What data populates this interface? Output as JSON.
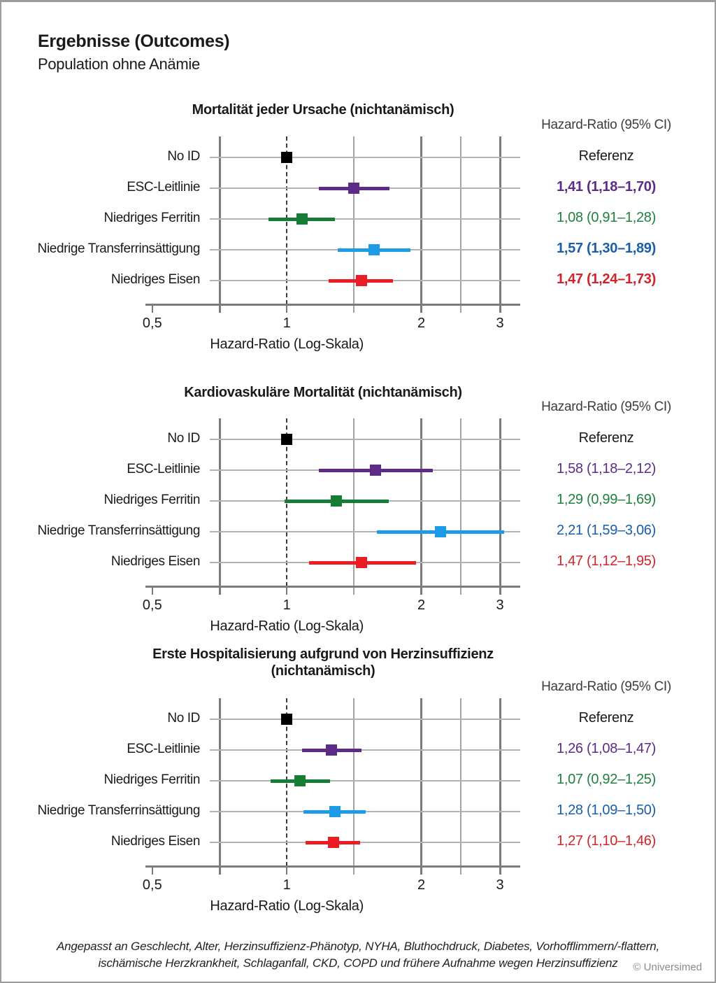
{
  "page": {
    "title": "Ergebnisse (Outcomes)",
    "subtitle": "Population ohne Anämie",
    "footer": {
      "line1": "Angepasst an Geschlecht, Alter, Herzinsuffizienz-Phänotyp, NYHA, Bluthochdruck, Diabetes, Vorhofflimmern/-flattern,",
      "line2": "ischämische Herzkrankheit, Schlaganfall, CKD, COPD und frühere Aufnahme wegen Herzinsuffizienz"
    },
    "credit": "© Universimed"
  },
  "column_header": "Hazard-Ratio (95% CI)",
  "colors": {
    "reference": {
      "marker": "#000000",
      "text": "#1a1a1a"
    },
    "purple": {
      "marker": "#5D2B87",
      "text": "#5D2B87"
    },
    "green": {
      "marker": "#167D35",
      "text": "#1F8040"
    },
    "blue": {
      "marker": "#1E9BE6",
      "text": "#1A5DA8"
    },
    "red": {
      "marker": "#EC1C24",
      "text": "#D2232A"
    }
  },
  "chart_data": [
    {
      "type": "scatter",
      "subtype": "forest-plot",
      "title_lines": [
        "Mortalität jeder Ursache (nichtanämisch)"
      ],
      "xlabel": "Hazard-Ratio (Log-Skala)",
      "xscale": "log",
      "xlim": [
        0.5,
        3.33
      ],
      "xticks": [
        {
          "value": 0.5,
          "label": "0,5"
        },
        {
          "value": 1,
          "label": "1"
        },
        {
          "value": 2,
          "label": "2"
        },
        {
          "value": 3,
          "label": "3"
        }
      ],
      "reference_line": 1,
      "rows": [
        {
          "label": "No ID",
          "hr": 1.0,
          "ci": null,
          "text": "Referenz",
          "color": "reference",
          "bold": false
        },
        {
          "label": "ESC-Leitlinie",
          "hr": 1.41,
          "ci": [
            1.18,
            1.7
          ],
          "text": "1,41 (1,18–1,70)",
          "color": "purple",
          "bold": true
        },
        {
          "label": "Niedriges Ferritin",
          "hr": 1.08,
          "ci": [
            0.91,
            1.28
          ],
          "text": "1,08 (0,91–1,28)",
          "color": "green",
          "bold": false
        },
        {
          "label": "Niedrige Transferrinsättigung",
          "hr": 1.57,
          "ci": [
            1.3,
            1.89
          ],
          "text": "1,57 (1,30–1,89)",
          "color": "blue",
          "bold": true
        },
        {
          "label": "Niedriges Eisen",
          "hr": 1.47,
          "ci": [
            1.24,
            1.73
          ],
          "text": "1,47 (1,24–1,73)",
          "color": "red",
          "bold": true
        }
      ]
    },
    {
      "type": "scatter",
      "subtype": "forest-plot",
      "title_lines": [
        "Kardiovaskuläre Mortalität (nichtanämisch)"
      ],
      "xlabel": "Hazard-Ratio (Log-Skala)",
      "xscale": "log",
      "xlim": [
        0.5,
        3.33
      ],
      "xticks": [
        {
          "value": 0.5,
          "label": "0,5"
        },
        {
          "value": 1,
          "label": "1"
        },
        {
          "value": 2,
          "label": "2"
        },
        {
          "value": 3,
          "label": "3"
        }
      ],
      "reference_line": 1,
      "rows": [
        {
          "label": "No ID",
          "hr": 1.0,
          "ci": null,
          "text": "Referenz",
          "color": "reference",
          "bold": false
        },
        {
          "label": "ESC-Leitlinie",
          "hr": 1.58,
          "ci": [
            1.18,
            2.12
          ],
          "text": "1,58 (1,18–2,12)",
          "color": "purple",
          "bold": false
        },
        {
          "label": "Niedriges Ferritin",
          "hr": 1.29,
          "ci": [
            0.99,
            1.69
          ],
          "text": "1,29 (0,99–1,69)",
          "color": "green",
          "bold": false
        },
        {
          "label": "Niedrige Transferrinsättigung",
          "hr": 2.21,
          "ci": [
            1.59,
            3.06
          ],
          "text": "2,21 (1,59–3,06)",
          "color": "blue",
          "bold": false
        },
        {
          "label": "Niedriges Eisen",
          "hr": 1.47,
          "ci": [
            1.12,
            1.95
          ],
          "text": "1,47 (1,12–1,95)",
          "color": "red",
          "bold": false
        }
      ]
    },
    {
      "type": "scatter",
      "subtype": "forest-plot",
      "title_lines": [
        "Erste Hospitalisierung aufgrund von Herzinsuffizienz",
        "(nichtanämisch)"
      ],
      "xlabel": "Hazard-Ratio (Log-Skala)",
      "xscale": "log",
      "xlim": [
        0.5,
        3.33
      ],
      "xticks": [
        {
          "value": 0.5,
          "label": "0,5"
        },
        {
          "value": 1,
          "label": "1"
        },
        {
          "value": 2,
          "label": "2"
        },
        {
          "value": 3,
          "label": "3"
        }
      ],
      "reference_line": 1,
      "rows": [
        {
          "label": "No ID",
          "hr": 1.0,
          "ci": null,
          "text": "Referenz",
          "color": "reference",
          "bold": false
        },
        {
          "label": "ESC-Leitlinie",
          "hr": 1.26,
          "ci": [
            1.08,
            1.47
          ],
          "text": "1,26 (1,08–1,47)",
          "color": "purple",
          "bold": false
        },
        {
          "label": "Niedriges Ferritin",
          "hr": 1.07,
          "ci": [
            0.92,
            1.25
          ],
          "text": "1,07 (0,92–1,25)",
          "color": "green",
          "bold": false
        },
        {
          "label": "Niedrige Transferrinsättigung",
          "hr": 1.28,
          "ci": [
            1.09,
            1.5
          ],
          "text": "1,28 (1,09–1,50)",
          "color": "blue",
          "bold": false
        },
        {
          "label": "Niedriges Eisen",
          "hr": 1.27,
          "ci": [
            1.1,
            1.46
          ],
          "text": "1,27 (1,10–1,46)",
          "color": "red",
          "bold": false
        }
      ]
    }
  ]
}
